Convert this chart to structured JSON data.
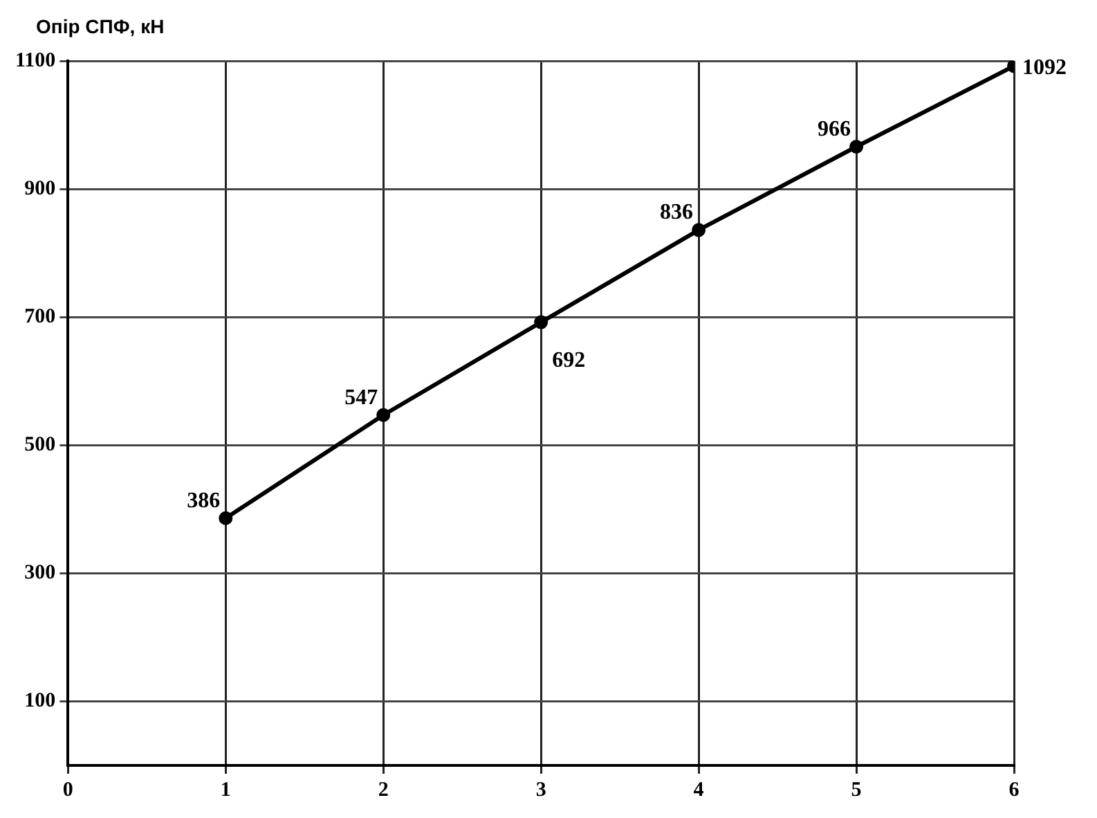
{
  "chart_data": {
    "type": "line",
    "ylabel": "Опір СПФ, кН",
    "x": [
      1,
      2,
      3,
      4,
      5,
      6
    ],
    "series": [
      {
        "color": "#000000",
        "values": [
          386,
          547,
          692,
          836,
          966,
          1092
        ]
      }
    ],
    "xlim": [
      0,
      6
    ],
    "xticks": [
      0,
      1,
      2,
      3,
      4,
      5,
      6
    ],
    "ylim": [
      0,
      1100
    ],
    "yticks": [
      100,
      300,
      500,
      700,
      900,
      1100
    ],
    "grid": true,
    "legend": false,
    "marker": "circle",
    "line_style": "solid",
    "data_labels": true
  }
}
